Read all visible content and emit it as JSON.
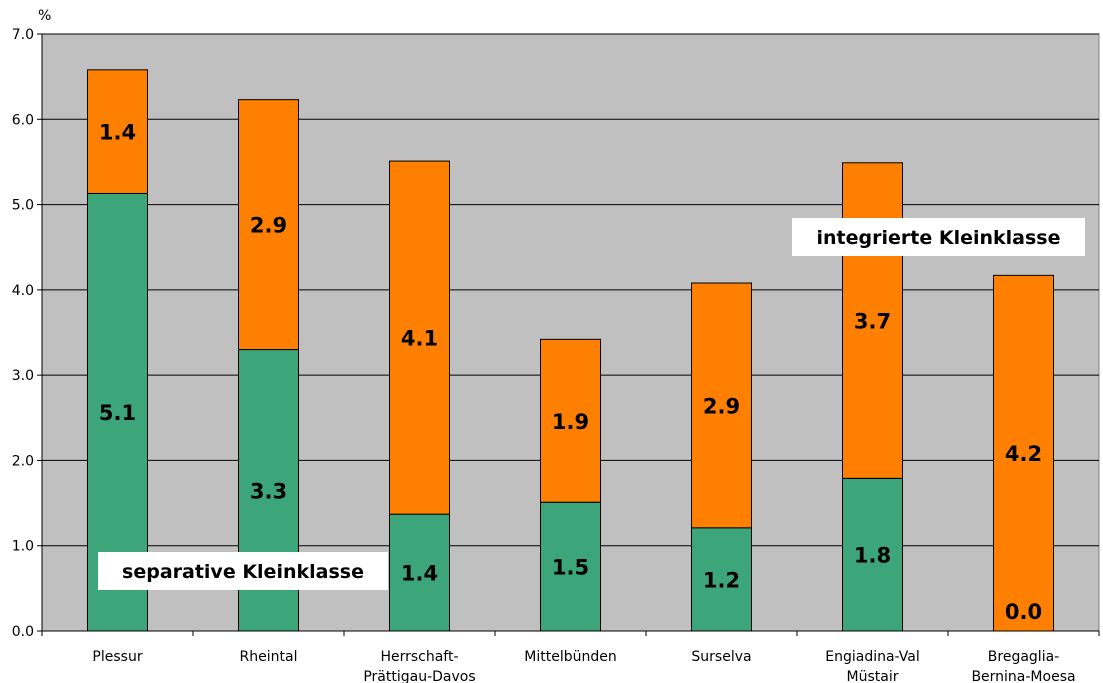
{
  "chart_data": {
    "type": "bar",
    "stacked": true,
    "ylabel": "%",
    "ylim": [
      0,
      7
    ],
    "yticks": [
      "0.0",
      "1.0",
      "2.0",
      "3.0",
      "4.0",
      "5.0",
      "6.0",
      "7.0"
    ],
    "grid": true,
    "categories": [
      [
        "Plessur"
      ],
      [
        "Rheintal"
      ],
      [
        "Herrschaft-",
        "Prättigau-Davos"
      ],
      [
        "Mittelbünden"
      ],
      [
        "Surselva"
      ],
      [
        "Engiadina-Val",
        "Müstair"
      ],
      [
        "Bregaglia-",
        "Bernina-Moesa"
      ]
    ],
    "series": [
      {
        "name": "separative Kleinklasse",
        "color": "#3ca57a",
        "values": [
          5.13,
          3.3,
          1.37,
          1.51,
          1.21,
          1.79,
          0.0
        ],
        "labels": [
          "5.1",
          "3.3",
          "1.4",
          "1.5",
          "1.2",
          "1.8",
          "0.0"
        ]
      },
      {
        "name": "integrierte Kleinklasse",
        "color": "#ff7f00",
        "values": [
          1.45,
          2.93,
          4.14,
          1.91,
          2.87,
          3.7,
          4.17
        ],
        "labels": [
          "1.4",
          "2.9",
          "4.1",
          "1.9",
          "2.9",
          "3.7",
          "4.2"
        ]
      }
    ],
    "annotations": [
      "separative Kleinklasse",
      "integrierte Kleinklasse"
    ],
    "plot_background": "#c0c0c0"
  }
}
